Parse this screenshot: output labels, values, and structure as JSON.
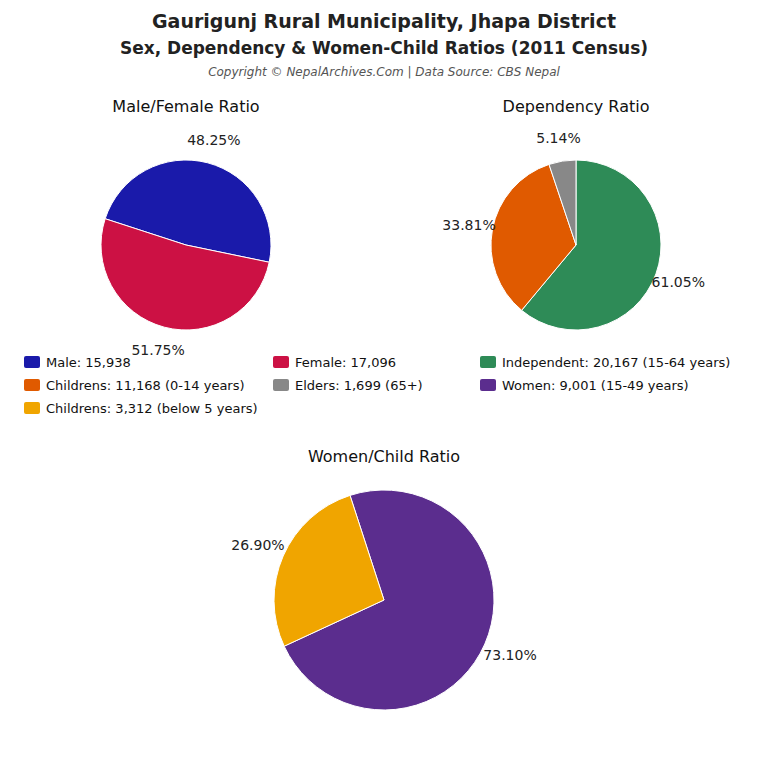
{
  "title": "Gaurigunj Rural Municipality, Jhapa District",
  "subtitle": "Sex, Dependency & Women-Child Ratios (2011 Census)",
  "annotations": [
    "Copyright © NepalArchives.Com | Data Source: CBS Nepal"
  ],
  "chart_data": [
    {
      "type": "pie",
      "title": "Male/Female Ratio",
      "categories": [
        "Male: 15,938",
        "Female: 17,096"
      ],
      "values": [
        48.25,
        51.75
      ],
      "value_labels": [
        "48.25%",
        "51.75%"
      ],
      "colors": [
        "#1a1aaa",
        "#cc1144"
      ],
      "data_labels": true
    },
    {
      "type": "pie",
      "title": "Dependency Ratio",
      "categories": [
        "Independent: 20,167 (15-64 years)",
        "Childrens: 11,168 (0-14 years)",
        "Elders: 1,699 (65+)"
      ],
      "values": [
        61.05,
        33.81,
        5.14
      ],
      "value_labels": [
        "61.05%",
        "33.81%",
        "5.14%"
      ],
      "colors": [
        "#2e8b57",
        "#e05a00",
        "#888888"
      ],
      "data_labels": true
    },
    {
      "type": "pie",
      "title": "Women/Child Ratio",
      "categories": [
        "Women: 9,001 (15-49 years)",
        "Childrens: 3,312 (below 5 years)"
      ],
      "values": [
        73.1,
        26.9
      ],
      "value_labels": [
        "73.10%",
        "26.90%"
      ],
      "colors": [
        "#5b2d8e",
        "#f0a500"
      ],
      "data_labels": true
    }
  ]
}
